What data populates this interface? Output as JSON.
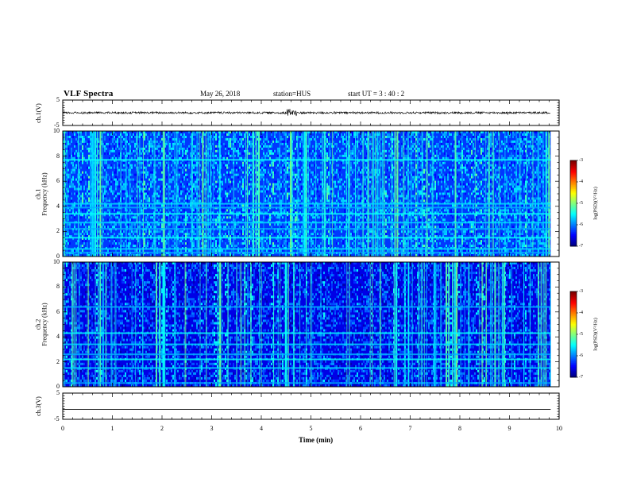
{
  "header": {
    "title": "VLF Spectra",
    "date": "May 26, 2018",
    "station": "station=HUS",
    "start": "start  UT  =   3 : 40 : 2"
  },
  "chart_data": [
    {
      "type": "line",
      "name": "ch.1 waveform",
      "ylabel": "ch.1(V)",
      "ylim": [
        -5,
        5
      ],
      "yticks": [
        "5",
        "-5"
      ],
      "xlim": [
        0,
        10
      ],
      "signal_extent_min": 9.83,
      "baseline": 0,
      "noise_amplitude": 0.4,
      "burst_time_min": 4.6,
      "burst_amplitude": 1.2
    },
    {
      "type": "heatmap",
      "name": "ch.1 spectrogram",
      "ylabel": "ch.1\nFrequency (kHz)",
      "ylabel_line1": "ch.1",
      "ylabel_line2": "Frequency (kHz)",
      "ylim": [
        0,
        10
      ],
      "yticks": [
        "0",
        "2",
        "4",
        "6",
        "8",
        "10"
      ],
      "xlim": [
        0,
        10
      ],
      "signal_extent_min": 9.83,
      "horizontal_lines_khz": [
        0.3,
        0.6,
        1.5,
        2.2,
        2.7,
        3.4,
        3.9,
        4.2,
        7.7
      ],
      "colorbar": {
        "label": "log(PSD)(V²/Hz)",
        "range": [
          -7,
          -3
        ],
        "ticks": [
          "-3",
          "-4",
          "-5",
          "-6",
          "-7"
        ]
      }
    },
    {
      "type": "heatmap",
      "name": "ch.2 spectrogram",
      "ylabel": "ch.2\nFrequency (kHz)",
      "ylabel_line1": "ch.2",
      "ylabel_line2": "Frequency (kHz)",
      "ylim": [
        0,
        10
      ],
      "yticks": [
        "0",
        "2",
        "4",
        "6",
        "8",
        "10"
      ],
      "xlim": [
        0,
        10
      ],
      "signal_extent_min": 9.83,
      "horizontal_lines_khz": [
        0.3,
        1.5,
        2.2,
        2.6,
        3.4,
        4.3,
        6.4
      ],
      "colorbar": {
        "label": "log(PSD)(V²/Hz)",
        "range": [
          -7,
          -3
        ],
        "ticks": [
          "-3",
          "-4",
          "-5",
          "-6",
          "-7"
        ]
      }
    },
    {
      "type": "line",
      "name": "ch.3 waveform",
      "ylabel": "ch.3(V)",
      "ylim": [
        -5,
        5
      ],
      "yticks": [
        "5",
        "-5"
      ],
      "xlim": [
        0,
        10
      ],
      "signal_extent_min": 9.83,
      "baseline": -1.2
    }
  ],
  "xaxis": {
    "label": "Time (min)",
    "ticks": [
      "0",
      "1",
      "2",
      "3",
      "4",
      "5",
      "6",
      "7",
      "8",
      "9",
      "10"
    ],
    "range": [
      0,
      10
    ]
  }
}
